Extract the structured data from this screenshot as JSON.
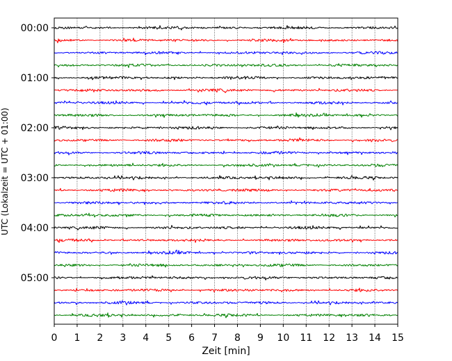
{
  "chart_data": {
    "type": "line",
    "title": "",
    "xlabel": "Zeit  [min]",
    "ylabel": "UTC (Lokalzeit = UTC + 01:00)",
    "xlim": [
      0,
      15
    ],
    "x_ticks": [
      0,
      1,
      2,
      3,
      4,
      5,
      6,
      7,
      8,
      9,
      10,
      11,
      12,
      13,
      14,
      15
    ],
    "x_tick_labels": [
      "0",
      "1",
      "2",
      "3",
      "4",
      "5",
      "6",
      "7",
      "8",
      "9",
      "10",
      "11",
      "12",
      "13",
      "14",
      "15"
    ],
    "y_tick_labels": [
      "00:00",
      "01:00",
      "02:00",
      "03:00",
      "04:00",
      "05:00"
    ],
    "y_tick_rows": [
      0,
      4,
      8,
      12,
      16,
      20
    ],
    "traces_per_hour": 4,
    "trace_count": 24,
    "trace_colors": [
      "#000000",
      "#ff0000",
      "#0000ff",
      "#008000"
    ],
    "grid": {
      "x": true,
      "y": false
    }
  }
}
